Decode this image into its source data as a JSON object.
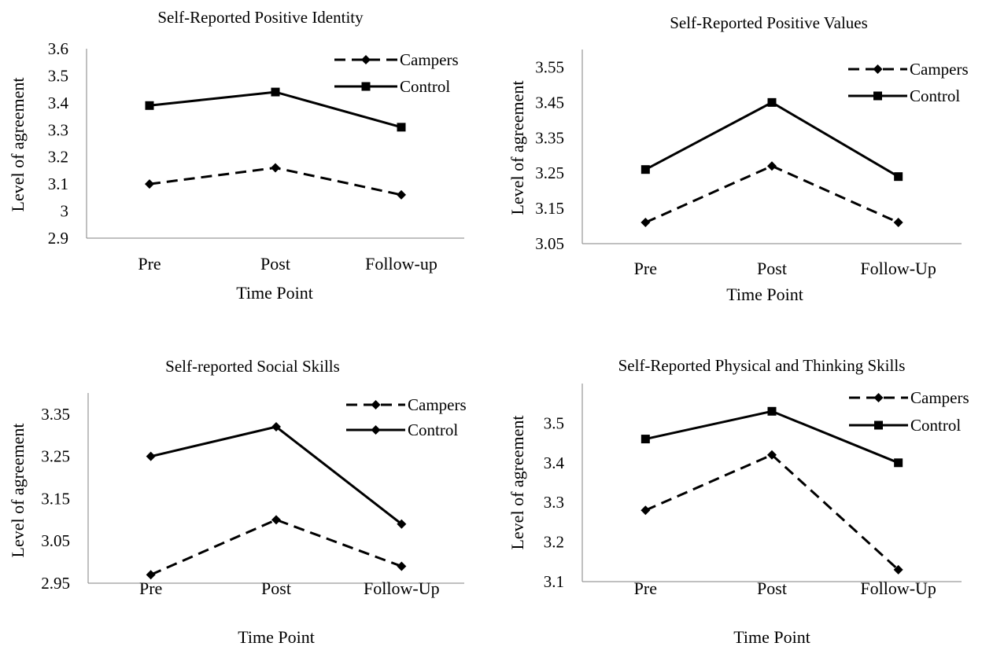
{
  "chart_data": [
    {
      "type": "line",
      "title": "Self-Reported Positive Identity",
      "xlabel": "Time Point",
      "ylabel": "Level of agreement",
      "categories": [
        "Pre",
        "Post",
        "Follow-up"
      ],
      "ylim": [
        2.9,
        3.6
      ],
      "yticks": [
        "2.9",
        "3",
        "3.1",
        "3.2",
        "3.3",
        "3.4",
        "3.5",
        "3.6"
      ],
      "grid": false,
      "legend_position": "top-right",
      "series": [
        {
          "name": "Campers",
          "values": [
            3.1,
            3.16,
            3.06
          ],
          "style": "dashed",
          "marker": "diamond"
        },
        {
          "name": "Control",
          "values": [
            3.39,
            3.44,
            3.31
          ],
          "style": "solid",
          "marker": "square"
        }
      ]
    },
    {
      "type": "line",
      "title": "Self-Reported Positive Values",
      "xlabel": "Time Point",
      "ylabel": "Level of agreement",
      "categories": [
        "Pre",
        "Post",
        "Follow-Up"
      ],
      "ylim": [
        3.05,
        3.6
      ],
      "yticks": [
        "3.05",
        "3.15",
        "3.25",
        "3.35",
        "3.45",
        "3.55"
      ],
      "grid": false,
      "legend_position": "top-right",
      "series": [
        {
          "name": "Campers",
          "values": [
            3.11,
            3.27,
            3.11
          ],
          "style": "dashed",
          "marker": "diamond"
        },
        {
          "name": "Control",
          "values": [
            3.26,
            3.45,
            3.24
          ],
          "style": "solid",
          "marker": "square"
        }
      ]
    },
    {
      "type": "line",
      "title": "Self-reported Social Skills",
      "xlabel": "Time Point",
      "ylabel": "Level of agreement",
      "categories": [
        "Pre",
        "Post",
        "Follow-Up"
      ],
      "ylim": [
        2.95,
        3.4
      ],
      "yticks": [
        "2.95",
        "3.05",
        "3.15",
        "3.25",
        "3.35"
      ],
      "grid": false,
      "legend_position": "top-right",
      "series": [
        {
          "name": "Campers",
          "values": [
            2.97,
            3.1,
            2.99
          ],
          "style": "dashed",
          "marker": "diamond"
        },
        {
          "name": "Control",
          "values": [
            3.25,
            3.32,
            3.09
          ],
          "style": "solid",
          "marker": "diamond"
        }
      ]
    },
    {
      "type": "line",
      "title": "Self-Reported Physical and Thinking Skills",
      "xlabel": "Time Point",
      "ylabel": "Level of agreement",
      "categories": [
        "Pre",
        "Post",
        "Follow-Up"
      ],
      "ylim": [
        3.1,
        3.6
      ],
      "yticks": [
        "3.1",
        "3.2",
        "3.3",
        "3.4",
        "3.5"
      ],
      "grid": false,
      "legend_position": "top-right",
      "series": [
        {
          "name": "Campers",
          "values": [
            3.28,
            3.42,
            3.13
          ],
          "style": "dashed",
          "marker": "diamond"
        },
        {
          "name": "Control",
          "values": [
            3.46,
            3.53,
            3.4
          ],
          "style": "solid",
          "marker": "square"
        }
      ]
    }
  ]
}
